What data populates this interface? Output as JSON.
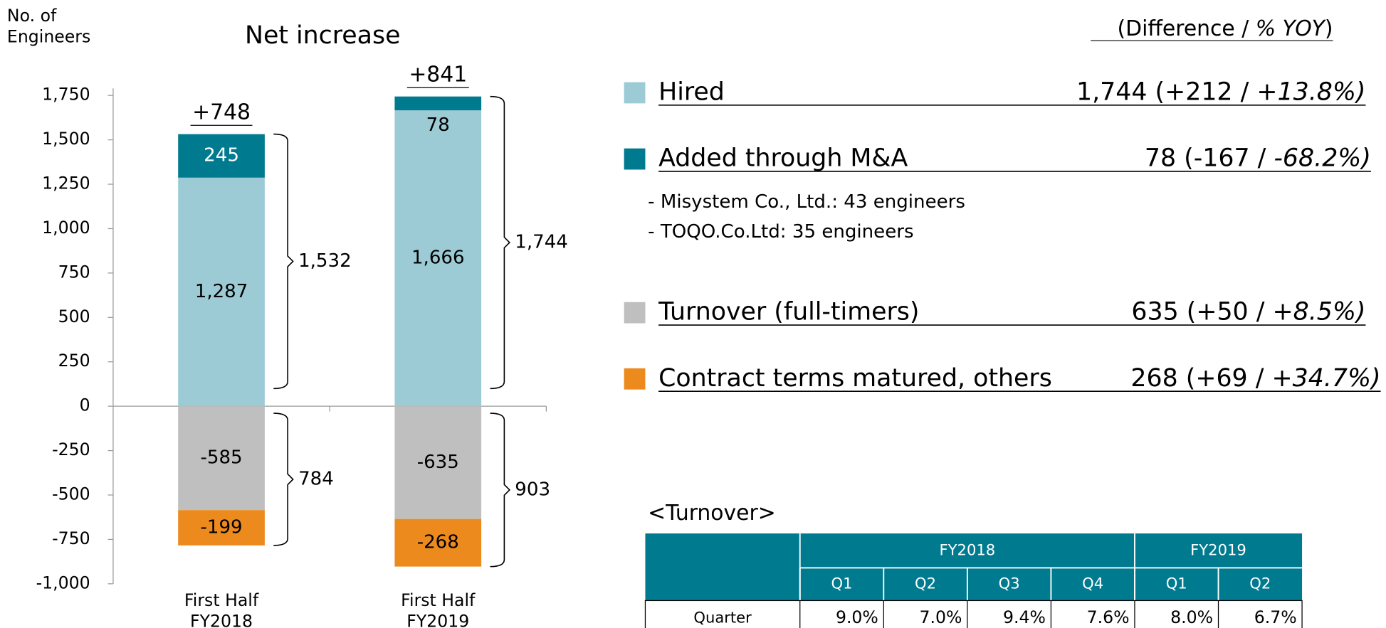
{
  "chart_data": {
    "type": "bar",
    "stacked": true,
    "title": "Net increase",
    "y_label": "No. of Engineers",
    "categories": [
      "First Half FY2018",
      "First Half FY2019"
    ],
    "series": [
      {
        "name": "Hired",
        "color": "#9ccbd6",
        "values": [
          1287,
          1666
        ],
        "value_labels": [
          "1,287",
          "1,666"
        ]
      },
      {
        "name": "Added through M&A",
        "color": "#007a8f",
        "values": [
          245,
          78
        ]
      },
      {
        "name": "Turnover (full-timers)",
        "color": "#bfbfbf",
        "values": [
          -585,
          -635
        ]
      },
      {
        "name": "Contract terms matured, others",
        "color": "#ed8a1e",
        "values": [
          -199,
          -268
        ]
      }
    ],
    "net_labels": [
      "+748",
      "+841"
    ],
    "positive_totals": [
      "1,532",
      "1,744"
    ],
    "negative_totals": [
      "784",
      "903"
    ],
    "ylim": [
      -1000,
      1750
    ],
    "yticks": [
      {
        "value": -1000,
        "label": "-1,000"
      },
      -750,
      -500,
      -250,
      0,
      250,
      500,
      750,
      {
        "value": 1000,
        "label": "1,000"
      },
      {
        "value": 1250,
        "label": "1,250"
      },
      {
        "value": 1500,
        "label": "1,500"
      },
      {
        "value": 1750,
        "label": "1,750"
      }
    ],
    "legend": "right",
    "legend_note": [
      "(Difference / ",
      "% YOY",
      ")"
    ],
    "legend_values": [
      {
        "text": "1,744 (+212 / ",
        "italic": "+13.8%)"
      },
      {
        "text": "78 (-167 / ",
        "italic": "-68.2%)"
      },
      {
        "text": "635 (+50 / ",
        "italic": "+8.5%)"
      },
      {
        "text": "268 (+69 / ",
        "italic": "+34.7%)"
      }
    ],
    "notes": [
      "- Misystem Co., Ltd.: 43 engineers",
      "- TOQO.Co.Ltd: 35 engineers"
    ]
  },
  "table": {
    "title": "<Turnover>",
    "groups": [
      {
        "label": "FY2018",
        "span": 4
      },
      {
        "label": "FY2019",
        "span": 2
      }
    ],
    "quarters": [
      "Q1",
      "Q2",
      "Q3",
      "Q4",
      "Q1",
      "Q2"
    ],
    "rows": [
      {
        "label": "Quarter",
        "values": [
          "9.0%",
          "7.0%",
          "9.4%",
          "7.6%",
          "8.0%",
          "6.7%"
        ]
      }
    ]
  }
}
